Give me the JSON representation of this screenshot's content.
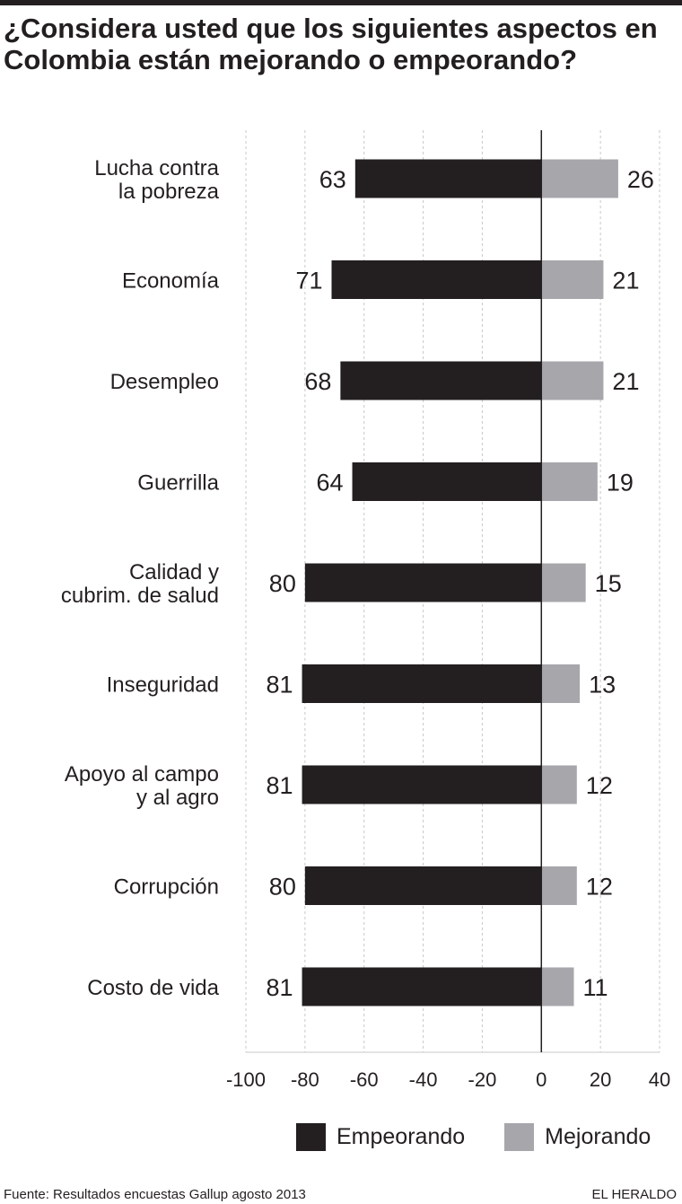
{
  "title": "¿Considera usted que los siguientes aspectos en Colombia están mejorando o empeorando?",
  "colors": {
    "empeorando": "#231f20",
    "mejorando": "#a7a6ab",
    "grid": "#c8c8c8",
    "axis": "#231f20"
  },
  "legend": {
    "empeorando": "Empeorando",
    "mejorando": "Mejorando"
  },
  "footer": {
    "source": "Fuente: Resultados encuestas Gallup agosto 2013",
    "brand": "EL HERALDO"
  },
  "chart_data": {
    "type": "bar",
    "orientation": "horizontal-diverging",
    "categories": [
      [
        "Lucha contra",
        "la pobreza"
      ],
      [
        "Economía"
      ],
      [
        "Desempleo"
      ],
      [
        "Guerrilla"
      ],
      [
        "Calidad y",
        "cubrim. de salud"
      ],
      [
        "Inseguridad"
      ],
      [
        "Apoyo al campo",
        "y al agro"
      ],
      [
        "Corrupción"
      ],
      [
        "Costo de vida"
      ]
    ],
    "series": [
      {
        "name": "Empeorando",
        "values": [
          63,
          71,
          68,
          64,
          80,
          81,
          81,
          80,
          81
        ],
        "direction": "negative"
      },
      {
        "name": "Mejorando",
        "values": [
          26,
          21,
          21,
          19,
          15,
          13,
          12,
          12,
          11
        ],
        "direction": "positive"
      }
    ],
    "xlim": [
      -100,
      40
    ],
    "xticks": [
      "-100",
      "-80",
      "-60",
      "-40",
      "-20",
      "0",
      "20",
      "40"
    ],
    "grid": true,
    "legend_position": "bottom"
  }
}
